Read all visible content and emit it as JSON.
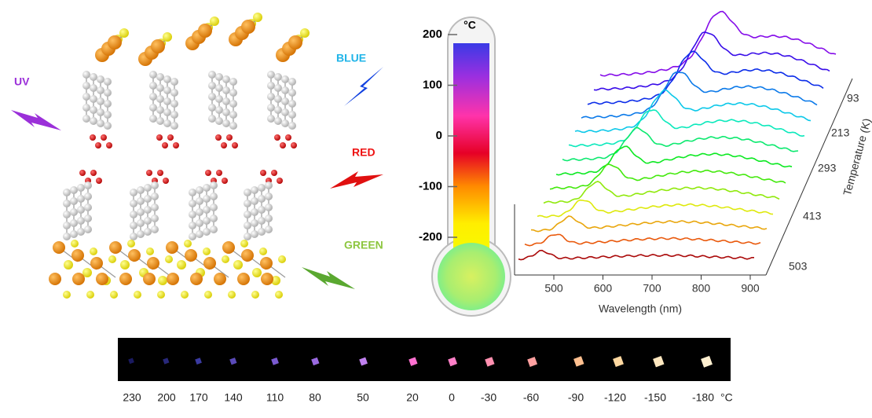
{
  "labels": {
    "uv": "UV",
    "blue": "BLUE",
    "red": "RED",
    "green": "GREEN"
  },
  "thermometer": {
    "unit": "°C",
    "ticks": [
      200,
      100,
      0,
      -100,
      -200
    ]
  },
  "spectra": {
    "x_label": "Wavelength (nm)",
    "x_ticks": [
      500,
      600,
      700,
      800,
      900
    ],
    "z_label": "Temperature (K)",
    "z_ticks": [
      93,
      213,
      293,
      413,
      503
    ]
  },
  "strip": {
    "temperatures": [
      230,
      200,
      170,
      140,
      110,
      80,
      50,
      20,
      0,
      -30,
      -60,
      -90,
      -120,
      -150,
      -180
    ],
    "unit": "°C"
  }
}
